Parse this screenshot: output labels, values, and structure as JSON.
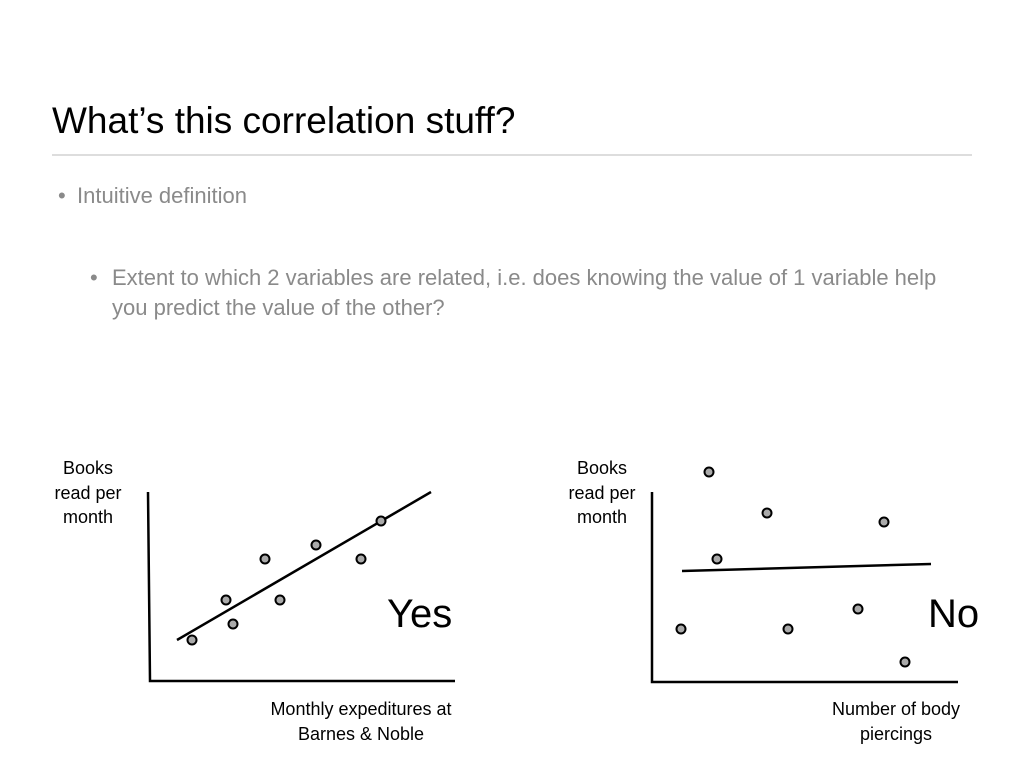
{
  "header": {
    "title": "What’s this correlation stuff?"
  },
  "bullets": [
    {
      "text": "Intuitive definition",
      "children": [
        {
          "text": "Extent to which 2 variables are related, i.e. does knowing the value of 1 variable help you predict the value of the other?"
        }
      ]
    }
  ],
  "figures": [
    {
      "y_label": "Books read per month",
      "x_label": "Monthly expeditures at Barnes & Noble",
      "verdict": "Yes"
    },
    {
      "y_label": "Books read per month",
      "x_label": "Number of body piercings",
      "verdict": "No"
    }
  ]
}
